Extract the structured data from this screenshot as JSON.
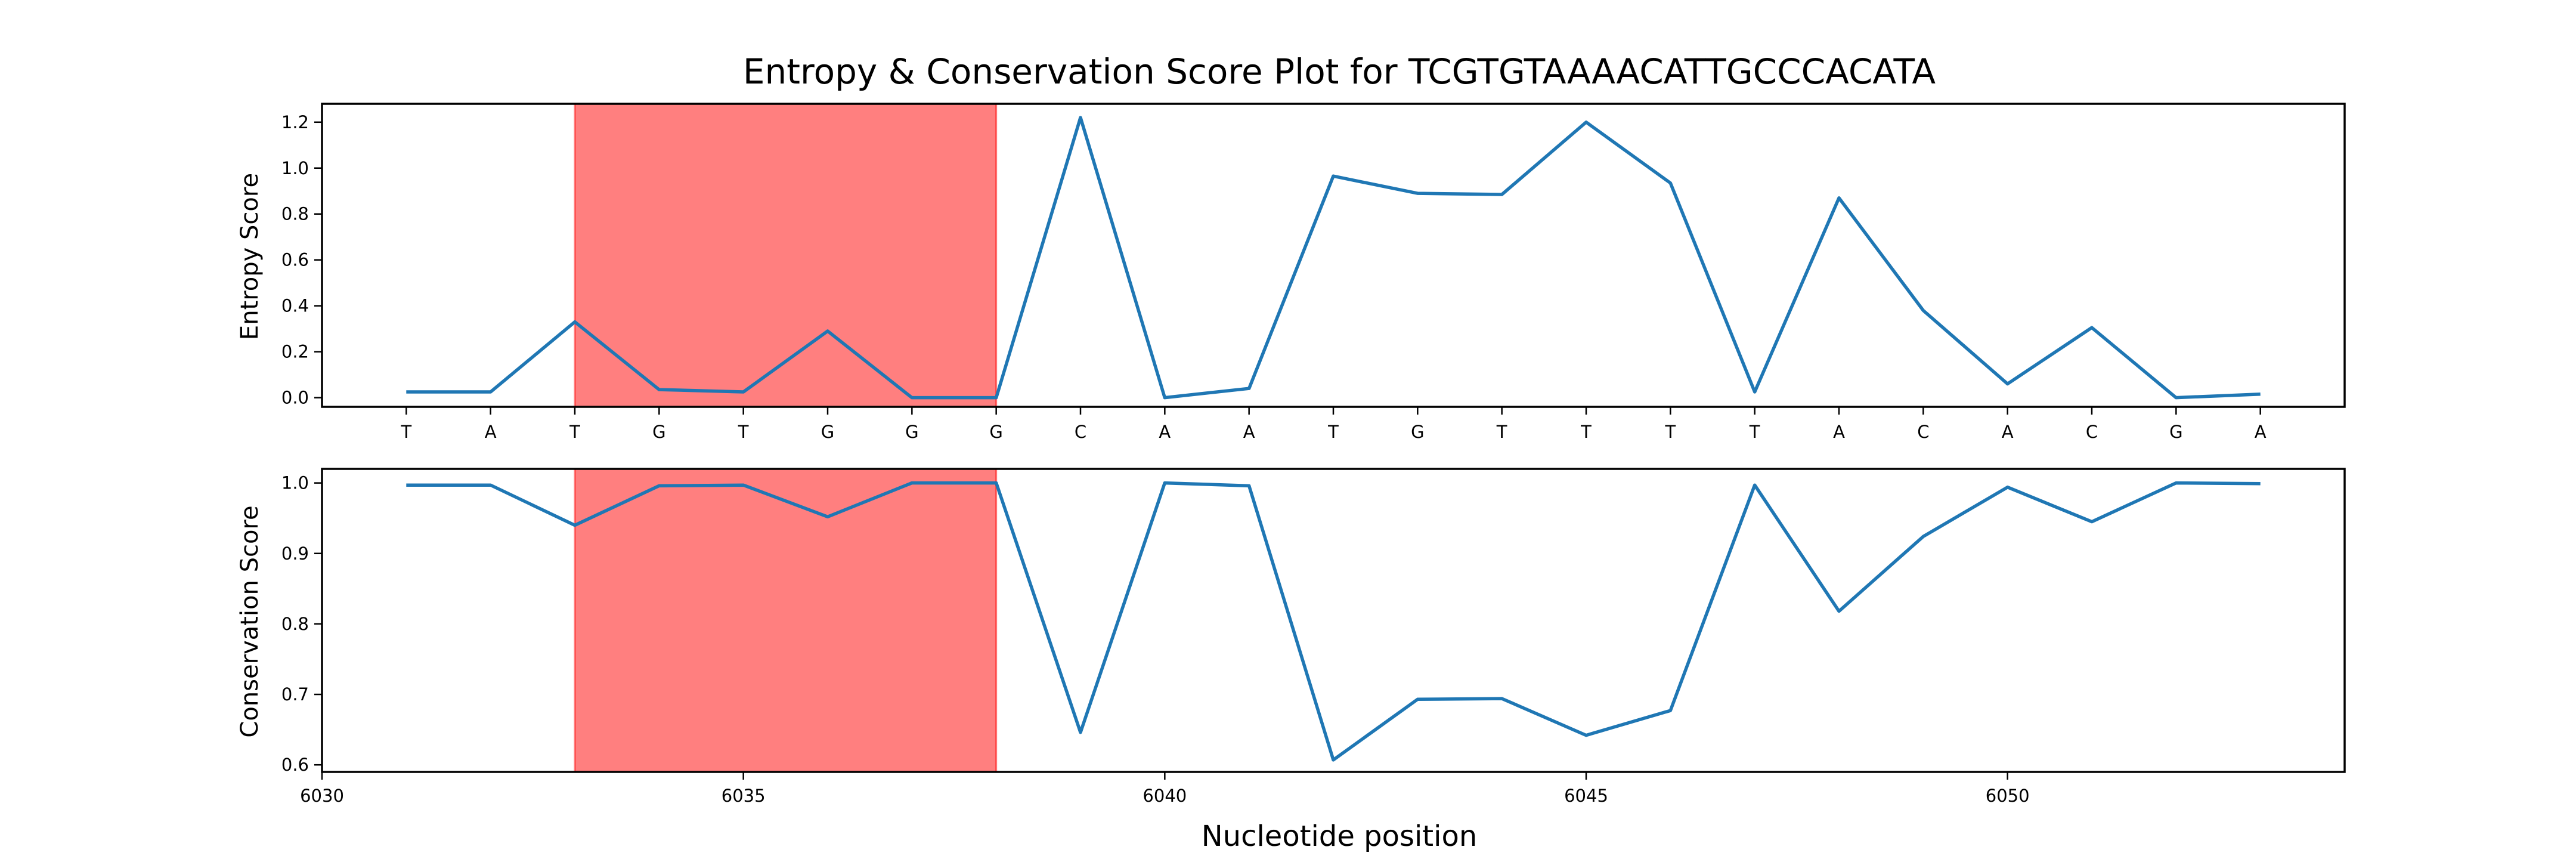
{
  "chart_data": {
    "type": "line",
    "title": "Entropy & Conservation Score Plot for TCGTGTAAAACATTGCCCACATA",
    "xlabel": "Nucleotide position",
    "x": [
      6031,
      6032,
      6033,
      6034,
      6035,
      6036,
      6037,
      6038,
      6039,
      6040,
      6041,
      6042,
      6043,
      6044,
      6045,
      6046,
      6047,
      6048,
      6049,
      6050,
      6051,
      6052,
      6053
    ],
    "nucleotides": [
      "T",
      "A",
      "T",
      "G",
      "T",
      "G",
      "G",
      "G",
      "C",
      "A",
      "A",
      "T",
      "G",
      "T",
      "T",
      "T",
      "T",
      "A",
      "C",
      "A",
      "C",
      "G",
      "A"
    ],
    "xlim": [
      6030,
      6054
    ],
    "xticks": [
      6030,
      6035,
      6040,
      6045,
      6050
    ],
    "highlight": {
      "x_start": 6033,
      "x_end": 6038,
      "color": "#ff0000"
    },
    "panels": [
      {
        "ylabel": "Entropy Score",
        "ylim": [
          -0.04,
          1.28
        ],
        "yticks": [
          0.0,
          0.2,
          0.4,
          0.6,
          0.8,
          1.0,
          1.2
        ],
        "ytick_labels": [
          "0.0",
          "0.2",
          "0.4",
          "0.6",
          "0.8",
          "1.0",
          "1.2"
        ],
        "values": [
          0.025,
          0.025,
          0.33,
          0.035,
          0.025,
          0.29,
          0.0,
          0.0,
          1.22,
          0.0,
          0.04,
          0.965,
          0.89,
          0.885,
          1.2,
          0.935,
          0.025,
          0.87,
          0.38,
          0.06,
          0.305,
          0.0,
          0.015
        ],
        "color": "#1f77b4"
      },
      {
        "ylabel": "Conservation Score",
        "ylim": [
          0.59,
          1.02
        ],
        "yticks": [
          0.6,
          0.7,
          0.8,
          0.9,
          1.0
        ],
        "ytick_labels": [
          "0.6",
          "0.7",
          "0.8",
          "0.9",
          "1.0"
        ],
        "values": [
          0.997,
          0.997,
          0.94,
          0.996,
          0.997,
          0.952,
          1.0,
          1.0,
          0.646,
          1.0,
          0.996,
          0.607,
          0.693,
          0.694,
          0.642,
          0.677,
          0.997,
          0.818,
          0.924,
          0.994,
          0.945,
          1.0,
          0.999
        ],
        "color": "#1f77b4"
      }
    ]
  }
}
